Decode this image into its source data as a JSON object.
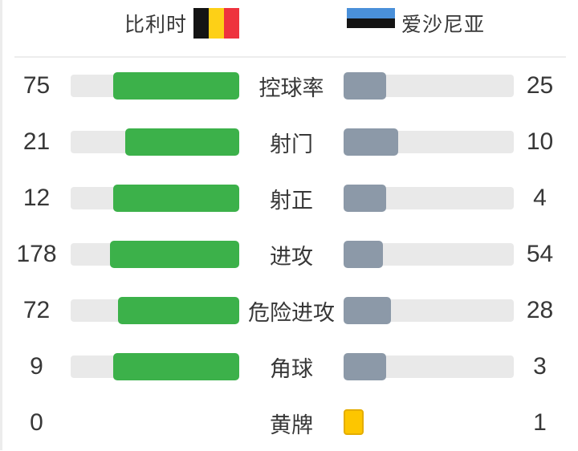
{
  "header": {
    "home_team": "比利时",
    "away_team": "爱沙尼亚",
    "home_flag_icon": "belgium-flag",
    "away_flag_icon": "estonia-flag"
  },
  "colors": {
    "home_bar": "#3cb14a",
    "away_bar": "#8c99a8",
    "track": "#e9e9e9",
    "card_fill": "#fdc600",
    "card_border": "#e4ad00",
    "text": "#373737",
    "divider": "#ededed",
    "flag_be_black": "#141414",
    "flag_be_yellow": "#fdd017",
    "flag_be_red": "#ee333e",
    "flag_ee_blue": "#4a90d9",
    "flag_ee_black": "#141414",
    "flag_ee_white": "#ffffff"
  },
  "chart_data": {
    "type": "bar",
    "orientation": "horizontal-paired-from-center",
    "categories": [
      "控球率",
      "射门",
      "射正",
      "进攻",
      "危险进攻",
      "角球",
      "黄牌"
    ],
    "series": [
      {
        "name": "比利时",
        "color": "#3cb14a",
        "values": [
          75,
          21,
          12,
          178,
          72,
          9,
          0
        ]
      },
      {
        "name": "爱沙尼亚",
        "color": "#8c99a8",
        "values": [
          25,
          10,
          4,
          54,
          28,
          3,
          1
        ]
      }
    ],
    "bar_fraction_rule": "fill width = value / (home value + away value)",
    "no_bar_categories": [
      "黄牌"
    ],
    "yellow_card_icon": "yellow-card",
    "legend_position": "top",
    "grid": false
  }
}
